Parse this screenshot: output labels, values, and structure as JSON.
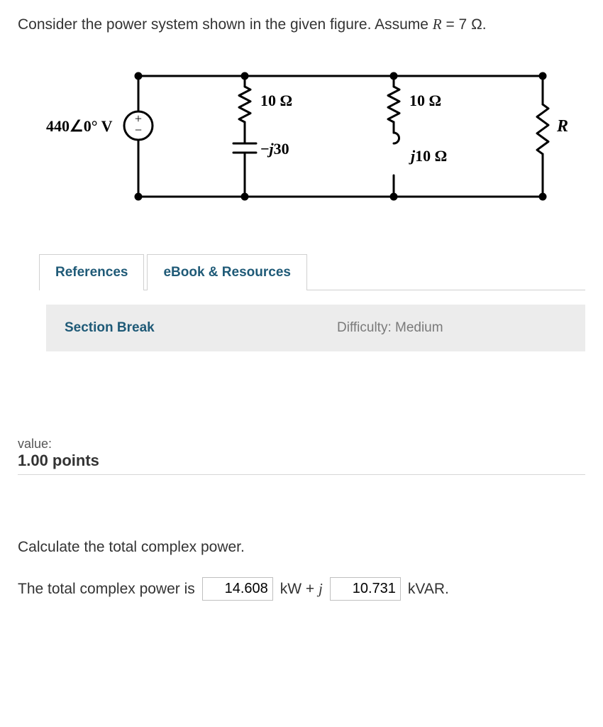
{
  "problem": {
    "text_before_var": "Consider the power system shown in the given figure. Assume ",
    "var_html": "R",
    "text_after_var": " = 7 Ω."
  },
  "circuit": {
    "source_label": "440∠0° V",
    "r1_label": "10 Ω",
    "r2_label": "10 Ω",
    "c_label": "−j30",
    "l_label": "j10 Ω",
    "r_label": "R",
    "stroke": "#000000",
    "stroke_width": 3,
    "font_family": "Times New Roman, serif",
    "label_fontsize": 22
  },
  "tabs": {
    "references": "References",
    "ebook": "eBook & Resources"
  },
  "section": {
    "break_label": "Section Break",
    "difficulty_label": "Difficulty: Medium"
  },
  "value": {
    "label": "value:",
    "points": "1.00 points"
  },
  "question": {
    "prompt": "Calculate the total complex power.",
    "answer_prefix": "The total complex power is",
    "input1": "14.608",
    "unit1": "kW + ",
    "j": "j",
    "input2": "10.731",
    "unit2": "kVAR."
  }
}
